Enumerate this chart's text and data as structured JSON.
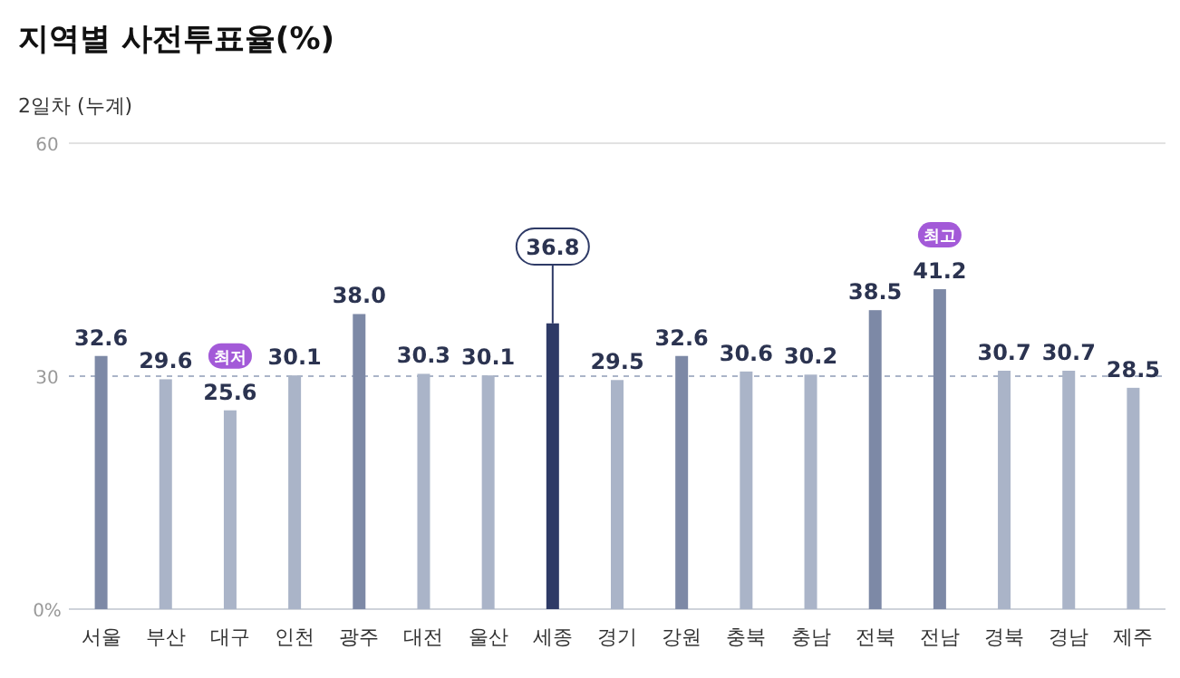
{
  "chart_data": {
    "type": "bar",
    "title": "지역별 사전투표율(%)",
    "subtitle": "2일차  (누계)",
    "categories": [
      "서울",
      "부산",
      "대구",
      "인천",
      "광주",
      "대전",
      "울산",
      "세종",
      "경기",
      "강원",
      "충북",
      "충남",
      "전북",
      "전남",
      "경북",
      "경남",
      "제주"
    ],
    "values": [
      32.6,
      29.6,
      25.6,
      30.1,
      38.0,
      30.3,
      30.1,
      36.8,
      29.5,
      32.6,
      30.6,
      30.2,
      38.5,
      41.2,
      30.7,
      30.7,
      28.5
    ],
    "colors": [
      "#7d89a6",
      "#aab4c8",
      "#aab4c8",
      "#aab4c8",
      "#7d89a6",
      "#aab4c8",
      "#aab4c8",
      "#2e3a66",
      "#aab4c8",
      "#7d89a6",
      "#aab4c8",
      "#aab4c8",
      "#7d89a6",
      "#7d89a6",
      "#aab4c8",
      "#aab4c8",
      "#aab4c8"
    ],
    "value_labels": [
      "32.6",
      "29.6",
      "25.6",
      "30.1",
      "38.0",
      "30.3",
      "30.1",
      null,
      "29.5",
      "32.6",
      "30.6",
      "30.2",
      "38.5",
      "41.2",
      "30.7",
      "30.7",
      "28.5"
    ],
    "annotations": [
      {
        "text": "36.8",
        "x": "세종",
        "y": 36.8
      },
      {
        "text": "최저",
        "x": "대구",
        "y": 25.6
      },
      {
        "text": "최고",
        "x": "전남",
        "y": 41.2
      }
    ],
    "ylim": [
      0,
      60
    ],
    "yticks": [
      {
        "value": 0,
        "label": "0%"
      },
      30,
      60
    ],
    "grid": "y"
  }
}
